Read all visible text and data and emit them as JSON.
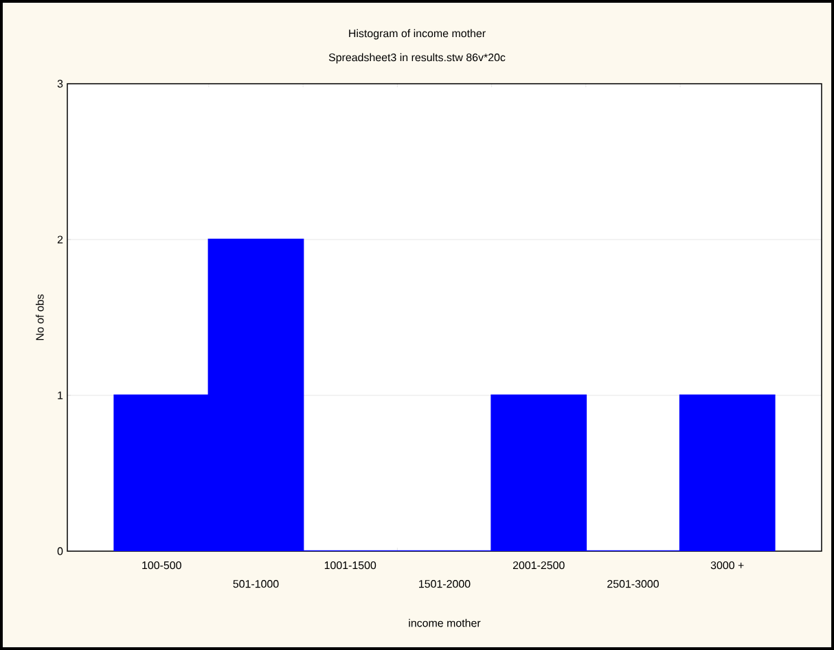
{
  "chart_data": {
    "type": "bar",
    "title": "Histogram of income mother",
    "subtitle": "Spreadsheet3 in results.stw 86v*20c",
    "xlabel": "income mother",
    "ylabel": "No of obs",
    "categories": [
      "100-500",
      "501-1000",
      "1001-1500",
      "1501-2000",
      "2001-2500",
      "2501-3000",
      "3000 +"
    ],
    "values": [
      1,
      2,
      0,
      0,
      1,
      0,
      1
    ],
    "color": "#0000ff",
    "ylim": [
      0,
      3
    ],
    "yticks": [
      0,
      1,
      2,
      3
    ],
    "grid": "y"
  }
}
